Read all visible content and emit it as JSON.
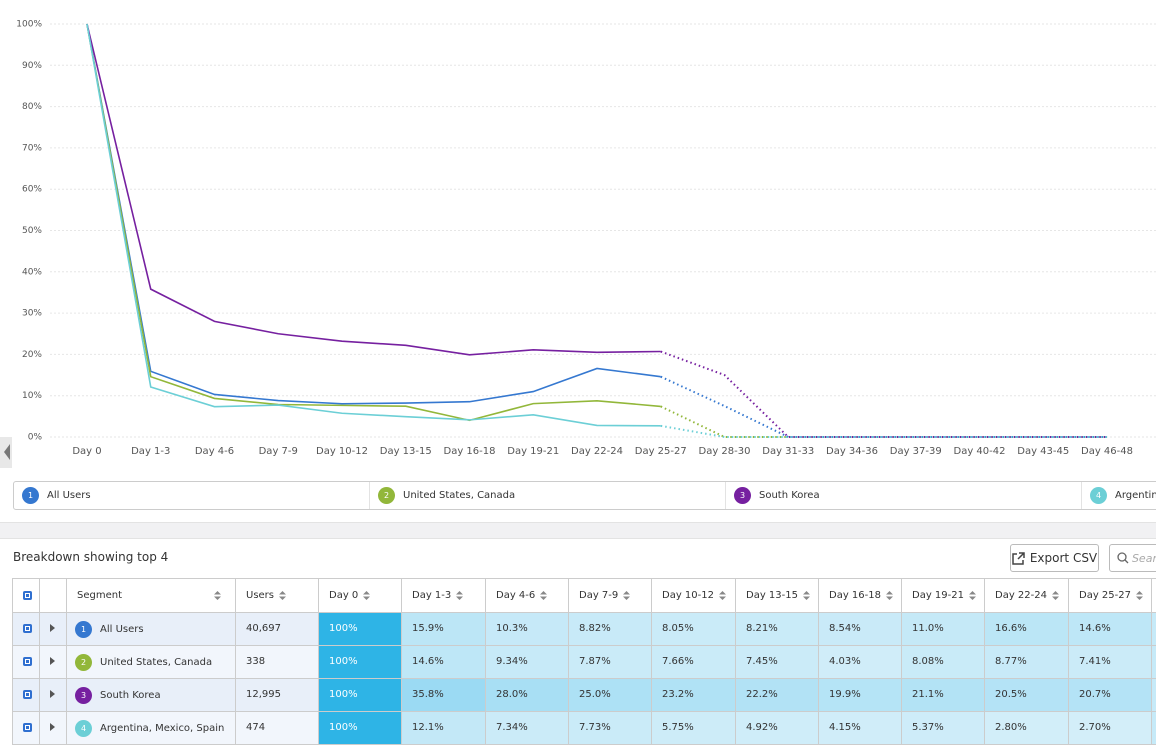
{
  "chart_data": {
    "type": "line",
    "categories": [
      "Day 0",
      "Day 1-3",
      "Day 4-6",
      "Day 7-9",
      "Day 10-12",
      "Day 13-15",
      "Day 16-18",
      "Day 19-21",
      "Day 22-24",
      "Day 25-27",
      "Day 28-30",
      "Day 31-33",
      "Day 34-36",
      "Day 37-39",
      "Day 40-42",
      "Day 43-45",
      "Day 46-48"
    ],
    "ylim": [
      0,
      100
    ],
    "yticks": [
      {
        "value": 0,
        "label": "0%"
      },
      {
        "value": 10,
        "label": "10%"
      },
      {
        "value": 20,
        "label": "20%"
      },
      {
        "value": 30,
        "label": "30%"
      },
      {
        "value": 40,
        "label": "40%"
      },
      {
        "value": 50,
        "label": "50%"
      },
      {
        "value": 60,
        "label": "60%"
      },
      {
        "value": 70,
        "label": "70%"
      },
      {
        "value": 80,
        "label": "80%"
      },
      {
        "value": 90,
        "label": "90%"
      },
      {
        "value": 100,
        "label": "100%"
      }
    ],
    "grid": true,
    "projection_start": 9,
    "series": [
      {
        "name": "All Users",
        "badge": "1",
        "color": "#3578d0",
        "values": [
          100,
          15.9,
          10.3,
          8.82,
          8.05,
          8.21,
          8.54,
          11.0,
          16.6,
          14.6,
          7.5,
          0,
          0,
          0,
          0,
          0,
          0
        ]
      },
      {
        "name": "United States, Canada",
        "badge": "2",
        "color": "#92b73a",
        "values": [
          100,
          14.6,
          9.34,
          7.87,
          7.66,
          7.45,
          4.03,
          8.08,
          8.77,
          7.41,
          0,
          0,
          0,
          0,
          0,
          0,
          0
        ]
      },
      {
        "name": "South Korea",
        "badge": "3",
        "color": "#7620a0",
        "values": [
          100,
          35.8,
          28.0,
          25.0,
          23.2,
          22.2,
          19.9,
          21.1,
          20.5,
          20.7,
          15,
          0,
          0,
          0,
          0,
          0,
          0
        ]
      },
      {
        "name": "Argentina, Mexico, Spain",
        "badge": "4",
        "color": "#6ccfd6",
        "values": [
          100,
          12.1,
          7.34,
          7.73,
          5.75,
          4.92,
          4.15,
          5.37,
          2.8,
          2.7,
          0,
          0,
          0,
          0,
          0,
          0,
          0
        ]
      }
    ]
  },
  "breakdown": {
    "title": "Breakdown showing top 4",
    "export": "Export CSV",
    "search": "Search",
    "columns": [
      "Segment",
      "Users",
      "Day 0",
      "Day 1-3",
      "Day 4-6",
      "Day 7-9",
      "Day 10-12",
      "Day 13-15",
      "Day 16-18",
      "Day 19-21",
      "Day 22-24",
      "Day 25-27"
    ],
    "rows": [
      [
        "All Users",
        "40,697",
        "100%",
        "15.9%",
        "10.3%",
        "8.82%",
        "8.05%",
        "8.21%",
        "8.54%",
        "11.0%",
        "16.6%",
        "14.6%"
      ],
      [
        "United States, Canada",
        "338",
        "100%",
        "14.6%",
        "9.34%",
        "7.87%",
        "7.66%",
        "7.45%",
        "4.03%",
        "8.08%",
        "8.77%",
        "7.41%"
      ],
      [
        "South Korea",
        "12,995",
        "100%",
        "35.8%",
        "28.0%",
        "25.0%",
        "23.2%",
        "22.2%",
        "19.9%",
        "21.1%",
        "20.5%",
        "20.7%"
      ],
      [
        "Argentina, Mexico, Spain",
        "474",
        "100%",
        "12.1%",
        "7.34%",
        "7.73%",
        "5.75%",
        "4.92%",
        "4.15%",
        "5.37%",
        "2.80%",
        "2.70%"
      ]
    ]
  }
}
